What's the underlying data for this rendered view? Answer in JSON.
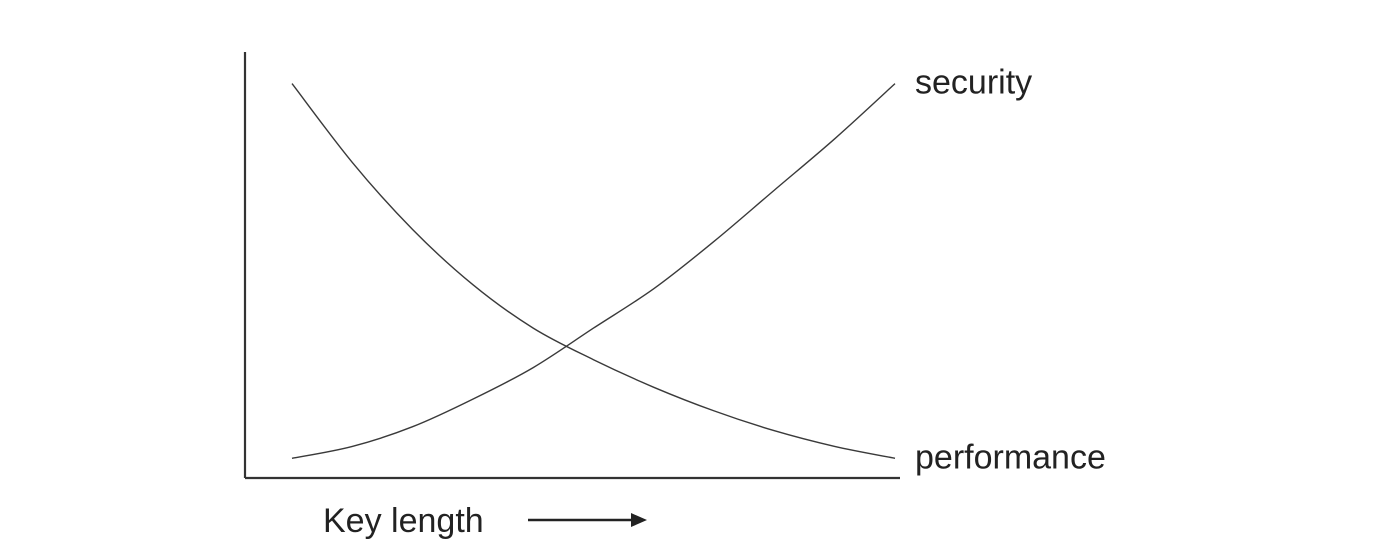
{
  "chart_data": {
    "type": "line",
    "title": "",
    "xlabel": "Key length",
    "ylabel": "",
    "x": [
      0,
      0.1,
      0.2,
      0.3,
      0.4,
      0.5,
      0.6,
      0.7,
      0.8,
      0.9,
      1.0
    ],
    "xlim": [
      0,
      1.08
    ],
    "ylim": [
      0,
      1.08
    ],
    "grid": false,
    "series": [
      {
        "name": "security",
        "values": [
          0.05,
          0.08,
          0.13,
          0.2,
          0.28,
          0.38,
          0.48,
          0.6,
          0.73,
          0.86,
          1.0
        ]
      },
      {
        "name": "performance",
        "values": [
          1.0,
          0.8,
          0.63,
          0.49,
          0.38,
          0.3,
          0.23,
          0.17,
          0.12,
          0.08,
          0.05
        ]
      }
    ],
    "x_arrow": true
  }
}
